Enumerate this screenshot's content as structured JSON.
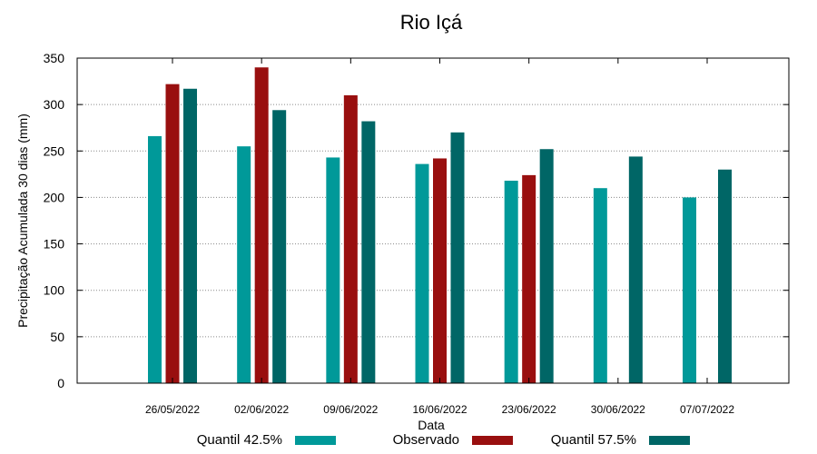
{
  "chart_data": {
    "type": "bar",
    "title": "Rio Içá",
    "xlabel": "Data",
    "ylabel": "Precipitação Acumulada 30 dias (mm)",
    "ylim": [
      0,
      350
    ],
    "yticks": [
      0,
      50,
      100,
      150,
      200,
      250,
      300,
      350
    ],
    "grid": true,
    "legend_position": "bottom",
    "categories": [
      "26/05/2022",
      "02/06/2022",
      "09/06/2022",
      "16/06/2022",
      "23/06/2022",
      "30/06/2022",
      "07/07/2022"
    ],
    "series": [
      {
        "name": "Quantil 42.5%",
        "color": "#009999",
        "values": [
          266,
          255,
          243,
          236,
          218,
          210,
          200
        ]
      },
      {
        "name": "Observado",
        "color": "#990f0f",
        "values": [
          322,
          340,
          310,
          242,
          224,
          null,
          null
        ]
      },
      {
        "name": "Quantil 57.5%",
        "color": "#006666",
        "values": [
          317,
          294,
          282,
          270,
          252,
          244,
          230
        ]
      }
    ]
  }
}
